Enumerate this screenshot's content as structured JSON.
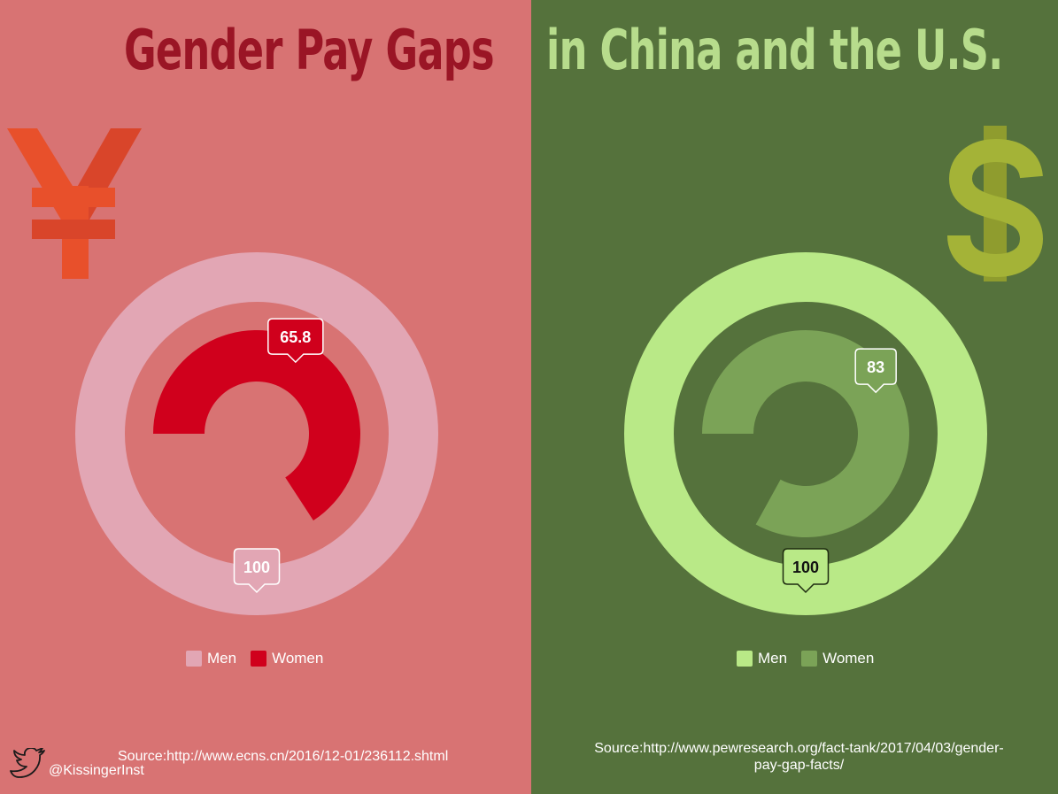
{
  "header": {
    "title_left": "Gender Pay Gaps",
    "title_right": "in China and the U.S."
  },
  "icons": {
    "left": "yen-icon",
    "right": "dollar-icon",
    "footer": "twitter-icon"
  },
  "colors": {
    "left_background": "#d87373",
    "right_background": "#55723c",
    "title_left": "#9a1525",
    "title_right": "#b7dc8c",
    "yen": "#e8502b",
    "dollar": "#9fae33"
  },
  "chart_data": [
    {
      "type": "donut",
      "series": [
        {
          "name": "Men",
          "value": 100,
          "color": "#e2a6b4",
          "label": "100"
        },
        {
          "name": "Women",
          "value": 65.8,
          "color": "#d0001c",
          "label": "65.8"
        }
      ],
      "max": 100,
      "legend": "bottom"
    },
    {
      "type": "donut",
      "series": [
        {
          "name": "Men",
          "value": 100,
          "color": "#b9e987",
          "label": "100"
        },
        {
          "name": "Women",
          "value": 83,
          "color": "#7ba357",
          "label": "83"
        }
      ],
      "max": 100,
      "legend": "bottom"
    }
  ],
  "footer": {
    "source_cn": "Source:http://www.ecns.cn/2016/12-01/236112.shtml",
    "source_us_line1": "Source:http://www.pewresearch.org/fact-tank/2017/04/03/gender-",
    "source_us_line2": "pay-gap-facts/",
    "handle": "@KissingerInst"
  }
}
